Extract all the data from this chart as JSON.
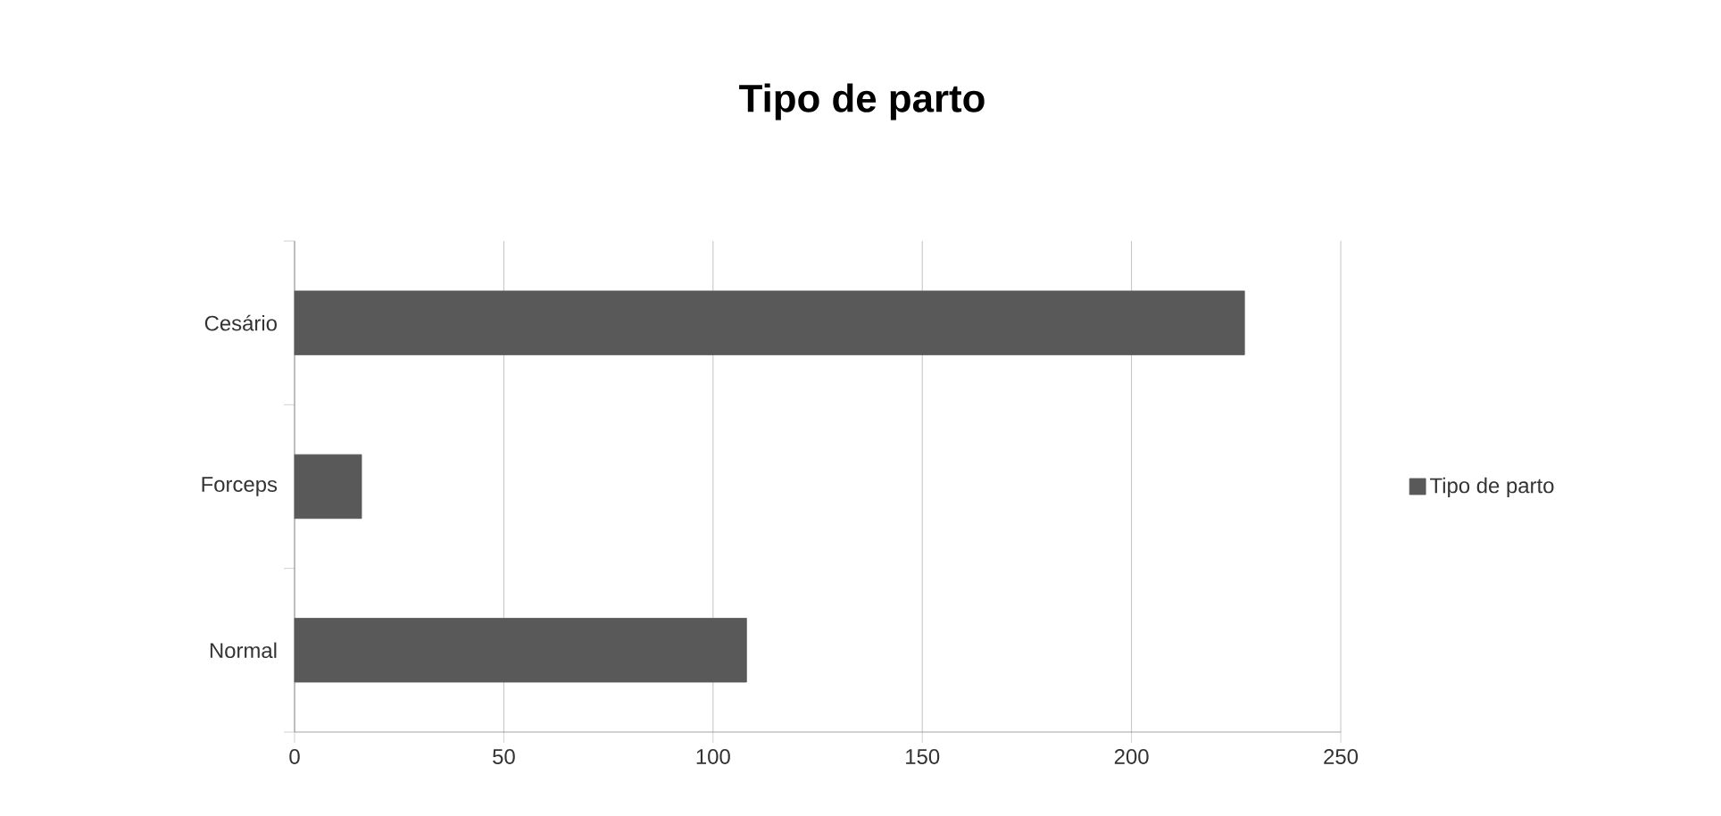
{
  "chart_data": {
    "type": "bar",
    "orientation": "horizontal",
    "title": "Tipo de parto",
    "categories": [
      "Cesário",
      "Forceps",
      "Normal"
    ],
    "series": [
      {
        "name": "Tipo de parto",
        "color": "#595959",
        "values": [
          227,
          16,
          108
        ]
      }
    ],
    "xlim": [
      0,
      250
    ],
    "xticks": [
      0,
      50,
      100,
      150,
      200,
      250
    ],
    "grid": "x",
    "legend": "right"
  }
}
